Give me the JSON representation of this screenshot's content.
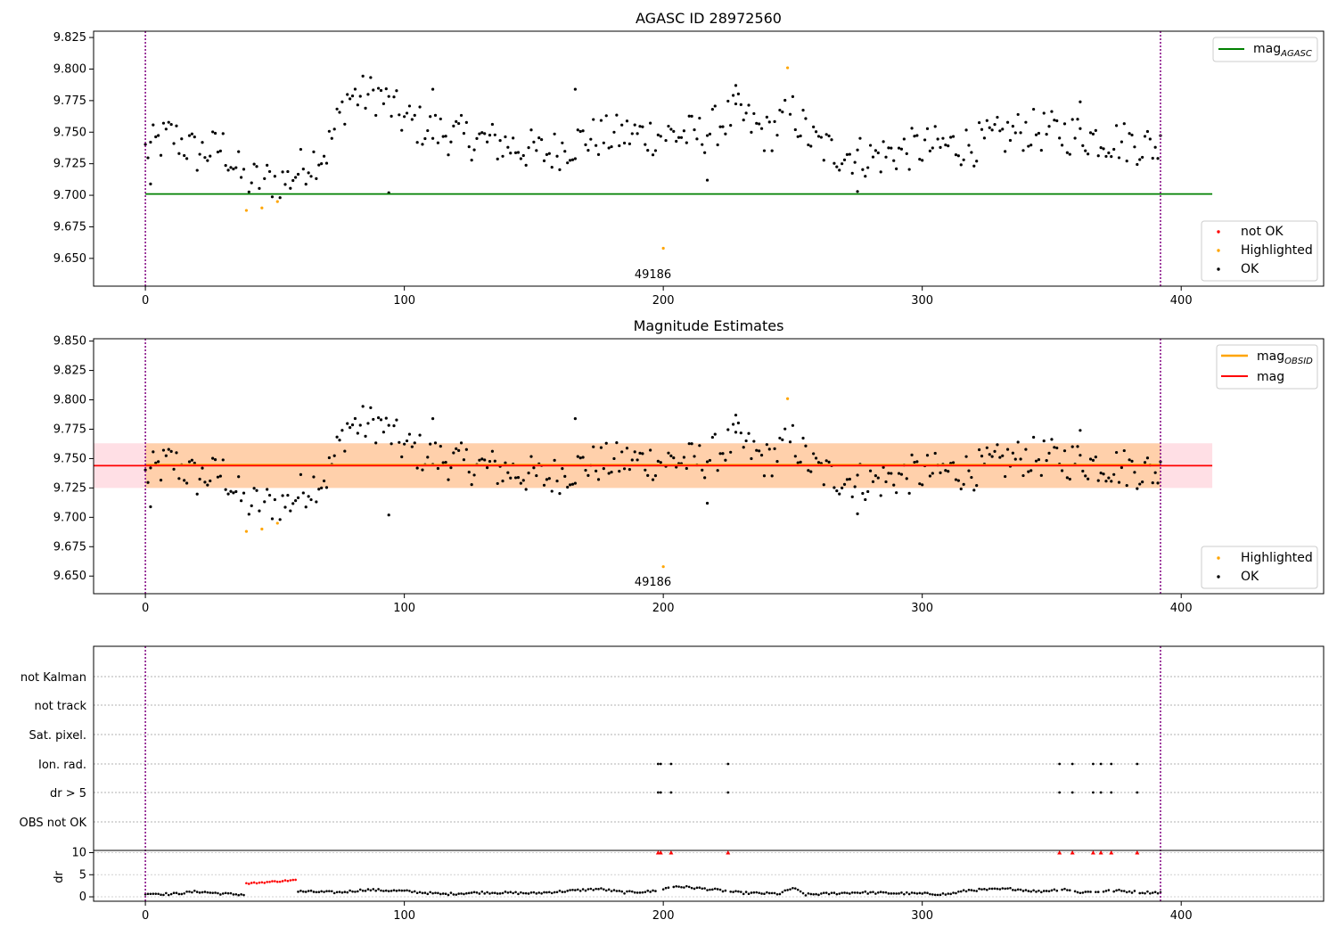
{
  "chart_data": [
    {
      "type": "scatter",
      "title": "AGASC ID 28972560",
      "xlim": [
        -20,
        455
      ],
      "ylim": [
        9.628,
        9.83
      ],
      "xticks": [
        0,
        100,
        200,
        300,
        400
      ],
      "yticks": [
        9.65,
        9.675,
        9.7,
        9.725,
        9.75,
        9.775,
        9.8,
        9.825
      ],
      "vlines": [
        0,
        392
      ],
      "hline": {
        "name": "mag_AGASC",
        "value": 9.701,
        "x_range": [
          0,
          412
        ]
      },
      "annotation": {
        "text": "49186",
        "x": 196
      },
      "legend_lines": [
        {
          "label": "mag",
          "sub": "AGASC",
          "color": "#008000"
        }
      ],
      "legend_points": [
        {
          "label": "not OK",
          "color": "#ff0000"
        },
        {
          "label": "Highlighted",
          "color": "#ffa500"
        },
        {
          "label": "OK",
          "color": "#000000"
        }
      ],
      "highlighted": [
        [
          39,
          9.688
        ],
        [
          45,
          9.69
        ],
        [
          51,
          9.695
        ],
        [
          200,
          9.658
        ],
        [
          248,
          9.801
        ]
      ]
    },
    {
      "type": "scatter",
      "title": "Magnitude Estimates",
      "xlim": [
        -20,
        455
      ],
      "ylim": [
        9.635,
        9.852
      ],
      "xticks": [
        0,
        100,
        200,
        300,
        400
      ],
      "yticks": [
        9.65,
        9.675,
        9.7,
        9.725,
        9.75,
        9.775,
        9.8,
        9.825,
        9.85
      ],
      "vlines": [
        0,
        392
      ],
      "mag": 9.744,
      "mag_obsid": 9.7445,
      "band_outer": [
        9.725,
        9.763
      ],
      "band_inner": [
        9.725,
        9.763
      ],
      "annotation": {
        "text": "49186",
        "x": 196
      },
      "legend_lines": [
        {
          "label": "mag",
          "sub": "OBSID",
          "color": "#ffa500"
        },
        {
          "label": "mag",
          "sub": "",
          "color": "#ff0000"
        }
      ],
      "legend_points": [
        {
          "label": "Highlighted",
          "color": "#ffa500"
        },
        {
          "label": "OK",
          "color": "#000000"
        }
      ]
    },
    {
      "type": "scatter",
      "title": "",
      "xlim": [
        -20,
        455
      ],
      "xticks": [
        0,
        100,
        200,
        300,
        400
      ],
      "flag_labels": [
        "not Kalman",
        "not track",
        "Sat. pixel.",
        "Ion. rad.",
        "dr > 5",
        "OBS not OK"
      ],
      "flags": {
        "Ion. rad.": [
          198,
          199,
          203,
          225,
          353,
          358,
          366,
          369,
          373,
          383
        ],
        "dr > 5": [
          198,
          199,
          203,
          225,
          353,
          358,
          366,
          369,
          373,
          383
        ]
      },
      "dr": {
        "ylabel": "dr",
        "yticks": [
          0,
          5,
          10
        ],
        "ylim": [
          -1,
          10.5
        ],
        "clipped_x": [
          198,
          199,
          203,
          225,
          353,
          358,
          366,
          369,
          373,
          383
        ],
        "red_segment": {
          "x": [
            39,
            58
          ],
          "y": [
            3.0,
            3.8
          ]
        }
      }
    }
  ]
}
